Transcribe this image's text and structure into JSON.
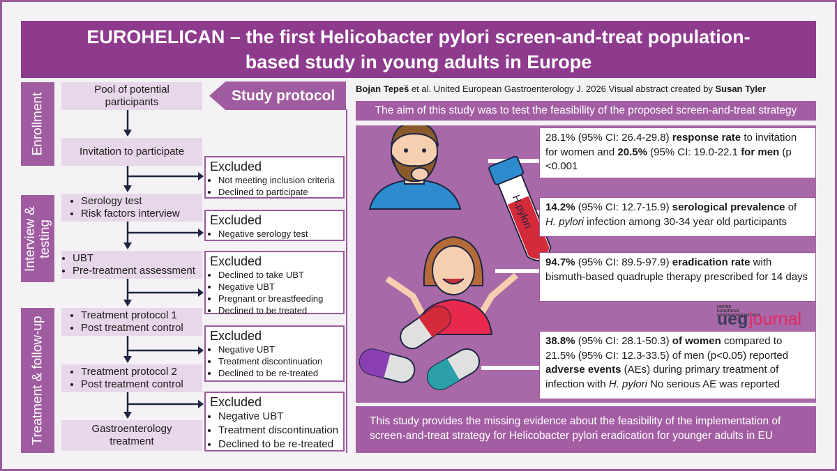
{
  "title": "EUROHELICAN – the first Helicobacter pylori screen-and-treat population-based study in young adults in Europe",
  "stages": [
    "Enrollment",
    "Interview & testing",
    "Treatment & follow-up"
  ],
  "study_protocol": "Study protocol",
  "flow": [
    [
      "Pool of potential participants"
    ],
    [
      "Invitation to participate"
    ],
    [
      "Serology test",
      "Risk factors interview"
    ],
    [
      "UBT",
      "Pre-treatment assessment"
    ],
    [
      "Treatment protocol 1",
      "Post treatment control"
    ],
    [
      "Treatment protocol 2",
      "Post treatment control"
    ],
    [
      "Gastroenterology treatment"
    ]
  ],
  "excluded": [
    {
      "heading": "Excluded",
      "items": [
        "Not meeting inclusion criteria",
        "Declined to participate"
      ]
    },
    {
      "heading": "Excluded",
      "items": [
        "Negative serology test"
      ]
    },
    {
      "heading": "Excluded",
      "items": [
        "Declined to take UBT",
        "Negative UBT",
        "Pregnant or breastfeeding",
        "Declined to be treated"
      ]
    },
    {
      "heading": "Excluded",
      "items": [
        "Negative UBT",
        "Treatment discontinuation",
        "Declined to be re-treated"
      ]
    },
    {
      "heading": "Excluded",
      "items": [
        "Negative UBT",
        "Treatment discontinuation",
        "Declined to be re-treated"
      ]
    }
  ],
  "credit": [
    "Bojan Tepeš",
    " et al. United European Gastroenterology J. 2026 Visual abstract created by ",
    "Susan Tyler"
  ],
  "aim": "The aim of this study was to test the feasibility of the proposed screen-and-treat strategy",
  "tube_label": "H.pylori",
  "findings": [
    [
      "28.1% (95% CI: 26.4-29.8) ",
      "response rate",
      " to invitation for women and ",
      "20.5%",
      " (95% CI: 19.0-22.1 ",
      "for men",
      " (p <0.001"
    ],
    [
      "14.2%",
      " (95% CI: 12.7-15.9) ",
      "serological prevalence",
      " of ",
      "H. pylori",
      " infection among 30-34 year old participants"
    ],
    [
      "94.7%",
      " (95% CI: 89.5-97.9) ",
      "eradication rate",
      " with bismuth-based quadruple therapy prescribed for 14 days"
    ],
    [
      "38.8%",
      " (95% CI: 28.1-50.3) ",
      "of women",
      " compared to 21.5% (95% CI: 12.3-33.5) of men (p<0.05) reported ",
      "adverse events",
      " (AEs) during primary treatment of infection with ",
      "H. pylori",
      " No serious AE was reported"
    ]
  ],
  "logo": {
    "small": "UNITED EUROPEAN GASTROENTEROLOGY",
    "ueg": "ueg",
    "journal": "journal"
  },
  "conclusion": "This study provides the missing evidence about the feasibility of the implementation of screen-and-treat strategy for Helicobacter pylori eradication for younger adults in EU"
}
